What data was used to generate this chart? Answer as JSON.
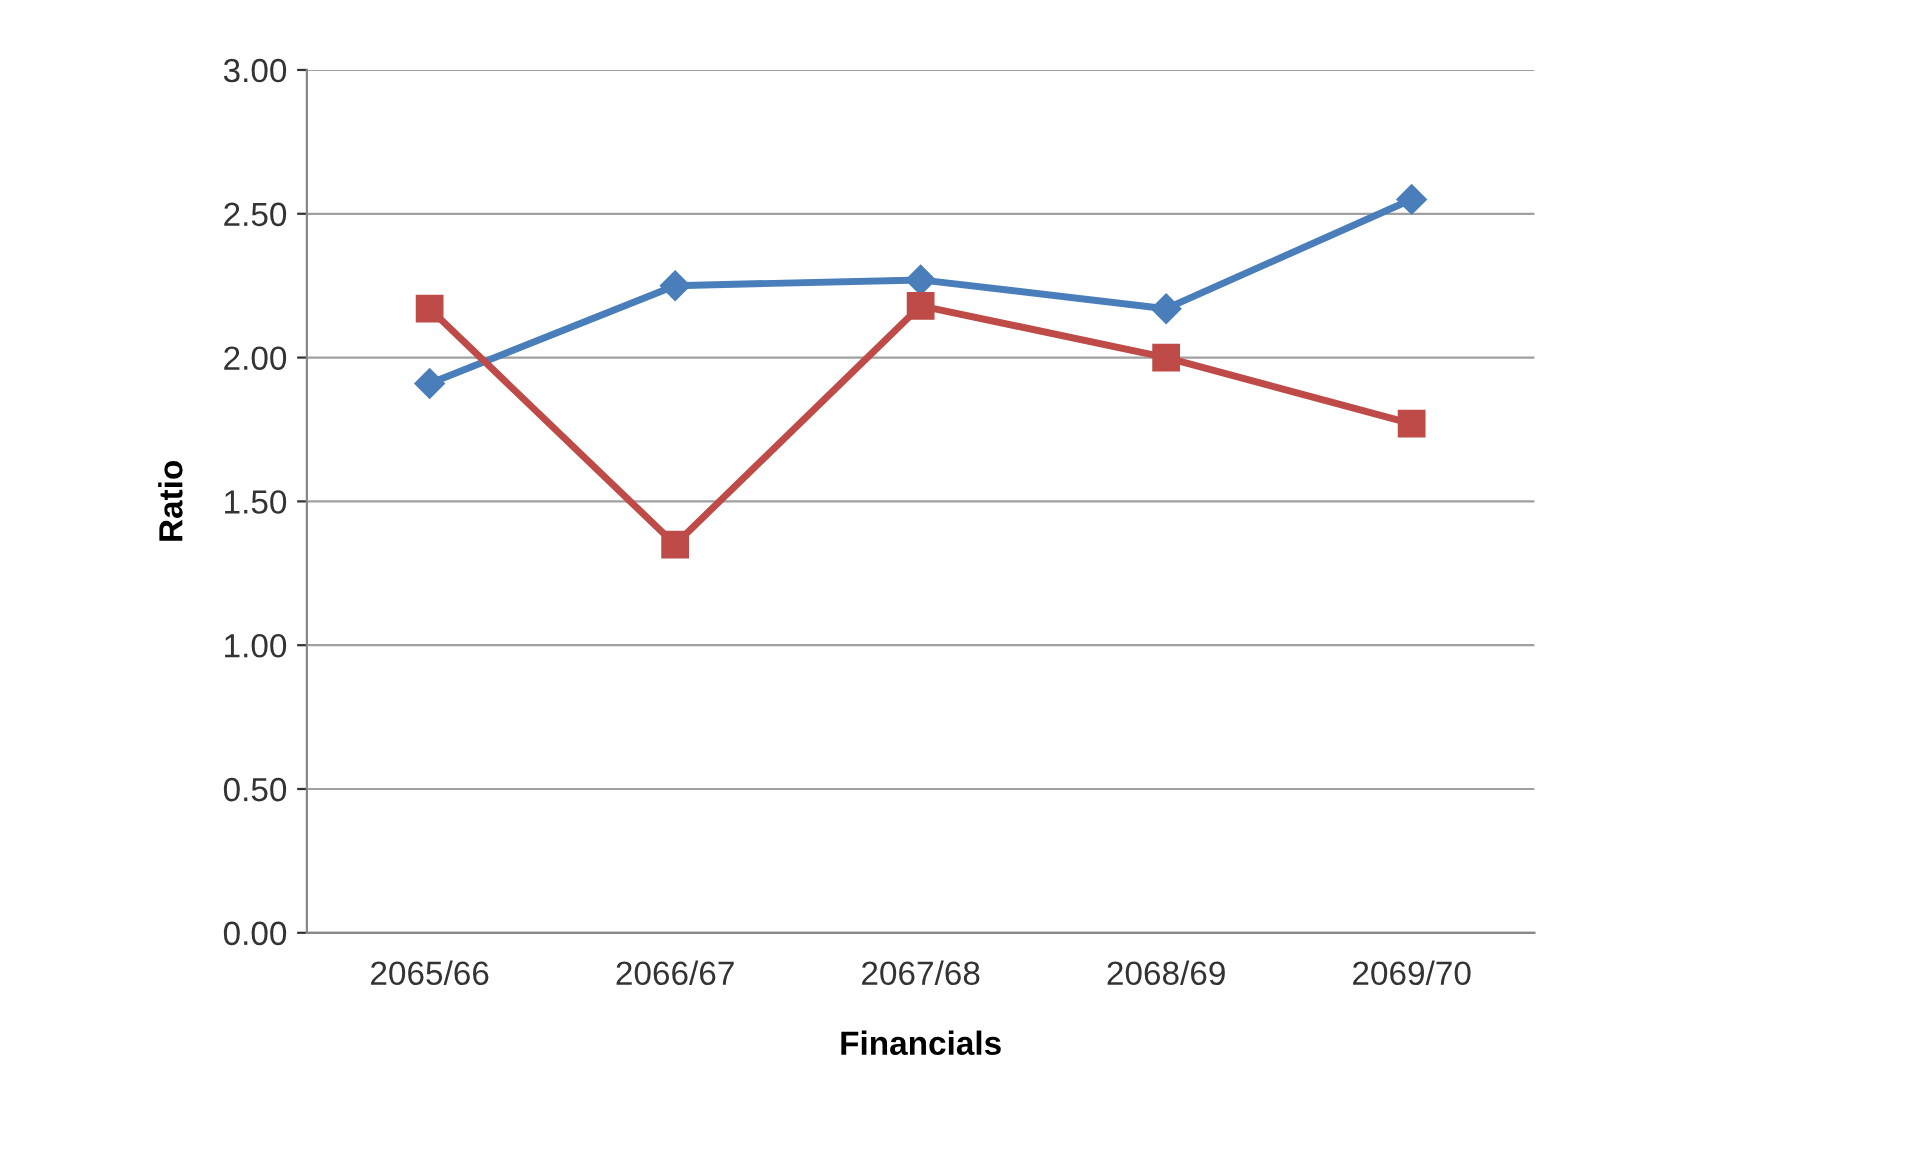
{
  "chart_data": {
    "type": "line",
    "xlabel": "Financials",
    "ylabel": "Ratio",
    "categories": [
      "2065/66",
      "2066/67",
      "2067/68",
      "2068/69",
      "2069/70"
    ],
    "series": [
      {
        "color": "#4a7ebb",
        "marker": "diamond",
        "values": [
          1.91,
          2.25,
          2.27,
          2.17,
          2.55
        ]
      },
      {
        "color": "#be4b48",
        "marker": "square",
        "values": [
          2.17,
          1.35,
          2.18,
          2.0,
          1.77
        ]
      }
    ],
    "ylim": [
      0,
      3
    ],
    "yticks": [
      {
        "value": 0,
        "label": "0.00"
      },
      {
        "value": 0.5,
        "label": "0.50"
      },
      {
        "value": 1,
        "label": "1.00"
      },
      {
        "value": 1.5,
        "label": "1.50"
      },
      {
        "value": 2,
        "label": "2.00"
      },
      {
        "value": 2.5,
        "label": "2.50"
      },
      {
        "value": 3,
        "label": "3.00"
      }
    ],
    "grid": "y",
    "line_style": "solid"
  }
}
